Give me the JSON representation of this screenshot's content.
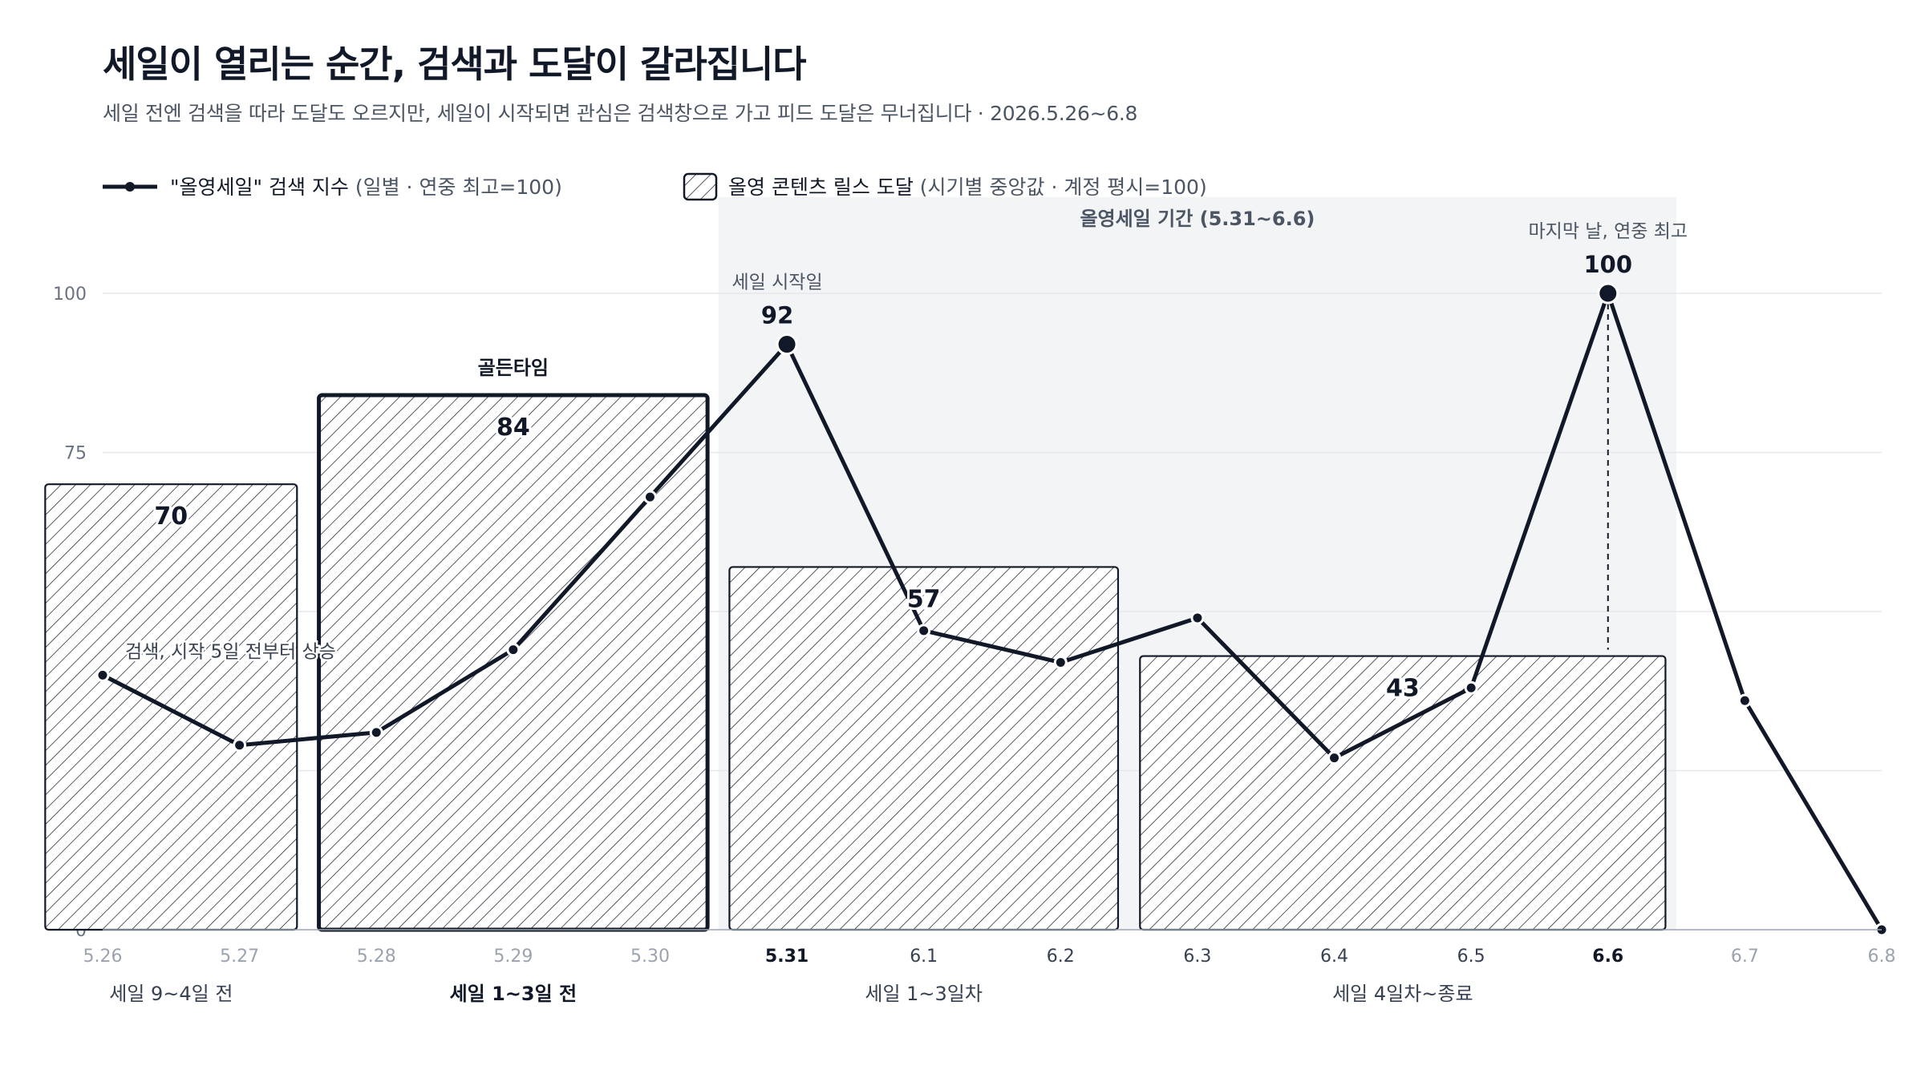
{
  "title": "세일이 열리는 순간, 검색과 도달이 갈라집니다",
  "subtitle": "세일 전엔 검색을 따라 도달도 오르지만, 세일이 시작되면 관심은 검색창으로 가고 피드 도달은 무너집니다 · 2026.5.26~6.8",
  "legend": {
    "line_label": "\"올영세일\" 검색 지수",
    "line_note": "(일별 · 연중 최고=100)",
    "bar_label": "올영 콘텐츠 릴스 도달",
    "bar_note": "(시기별 중앙값 · 계정 평시=100)"
  },
  "sale_period_label": "올영세일 기간 (5.31~6.6)",
  "annotations": {
    "rise": "검색, 시작 5일 전부터 상승",
    "start": "세일 시작일",
    "peak": "마지막 날, 연중 최고",
    "golden": "골든타임"
  },
  "colors": {
    "ink": "#111827",
    "muted": "#6b7280",
    "grid": "#e5e7eb",
    "sale_band": "#f3f4f6"
  },
  "chart_data": {
    "type": "line+bar",
    "x": [
      "5.26",
      "5.27",
      "5.28",
      "5.29",
      "5.30",
      "5.31",
      "6.1",
      "6.2",
      "6.3",
      "6.4",
      "6.5",
      "6.6",
      "6.7",
      "6.8"
    ],
    "highlight_ticks": [
      "5.31",
      "6.6"
    ],
    "muted_ticks": [
      "5.26",
      "5.27",
      "5.28",
      "5.29",
      "5.30",
      "6.7",
      "6.8"
    ],
    "ylim": [
      0,
      100
    ],
    "yticks": [
      0,
      25,
      50,
      75,
      100
    ],
    "sale_period": [
      "5.31",
      "6.6"
    ],
    "line": {
      "name": "\"올영세일\" 검색 지수",
      "values": [
        40,
        29,
        31,
        44,
        68,
        92,
        47,
        42,
        49,
        27,
        38,
        100,
        36,
        0
      ],
      "labeled_points": [
        {
          "x": "5.31",
          "value": "92"
        },
        {
          "x": "6.6",
          "value": "100"
        }
      ]
    },
    "bars": [
      {
        "period": "세일 9~4일 전",
        "start": "5.26",
        "end": "5.27",
        "value": 70,
        "highlight": false
      },
      {
        "period": "세일 1~3일 전",
        "start": "5.28",
        "end": "5.30",
        "value": 84,
        "highlight": true
      },
      {
        "period": "세일 1~3일차",
        "start": "5.31",
        "end": "6.2",
        "value": 57,
        "highlight": false
      },
      {
        "period": "세일 4일차~종료",
        "start": "6.3",
        "end": "6.6",
        "value": 43,
        "highlight": false
      }
    ]
  }
}
